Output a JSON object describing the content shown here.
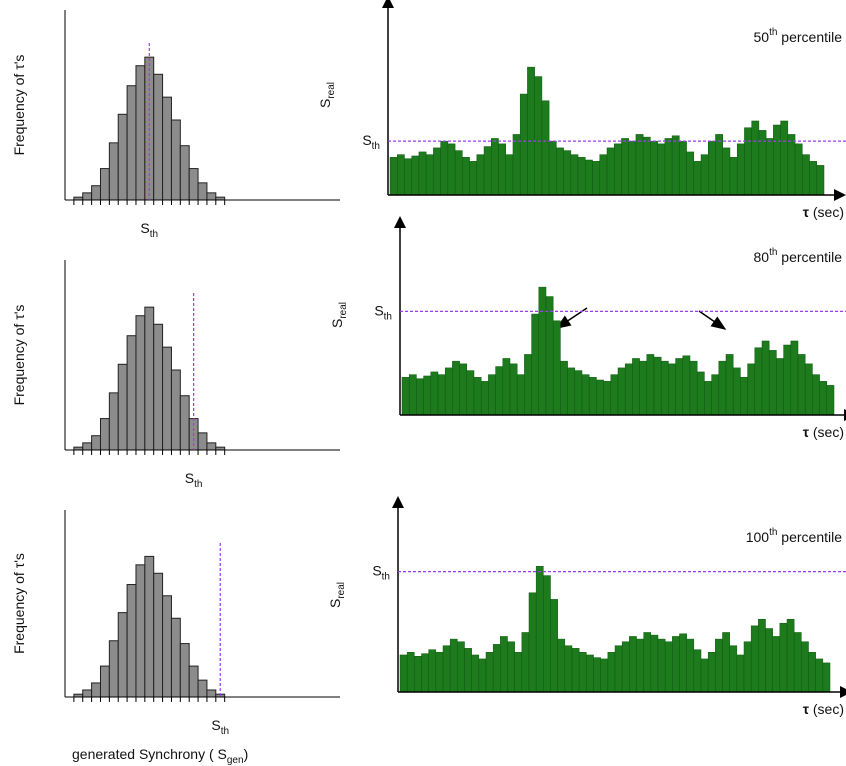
{
  "chart_data": [
    {
      "type": "histogram",
      "y_label": "Frequency of τ's",
      "color": "#8c8c8c",
      "threshold_color": "#9b3cf0",
      "bins": [
        0,
        1,
        2,
        3,
        4,
        5,
        6,
        7,
        8,
        9,
        10,
        11,
        12,
        13,
        14,
        15,
        16,
        17
      ],
      "values": [
        2,
        5,
        10,
        22,
        40,
        60,
        80,
        94,
        100,
        88,
        72,
        56,
        38,
        22,
        12,
        5,
        2
      ],
      "xlim": [
        -1,
        30
      ],
      "ylim": [
        0,
        133
      ],
      "threshold": 8.5,
      "threshold_label": {
        "main": "S",
        "sub": "th"
      }
    },
    {
      "type": "timeseries",
      "title": {
        "num": "50",
        "sup": "th",
        "rest": " percentile"
      },
      "y_label": {
        "main": "S",
        "sub": "real"
      },
      "x_label": {
        "sym": "τ",
        "rest": " (sec)"
      },
      "color": "#1d7a1d",
      "threshold_color": "#9b3cf0",
      "values": [
        28,
        30,
        27,
        29,
        32,
        30,
        35,
        40,
        38,
        33,
        28,
        25,
        30,
        36,
        42,
        38,
        30,
        45,
        75,
        95,
        88,
        70,
        40,
        35,
        33,
        30,
        28,
        26,
        25,
        30,
        35,
        38,
        42,
        40,
        45,
        43,
        40,
        38,
        42,
        44,
        40,
        32,
        25,
        30,
        40,
        45,
        35,
        28,
        38,
        50,
        55,
        48,
        42,
        52,
        55,
        45,
        38,
        30,
        25,
        22
      ],
      "ylim": [
        0,
        130
      ],
      "threshold": 40,
      "threshold_label": {
        "main": "S",
        "sub": "th"
      }
    },
    {
      "type": "histogram",
      "y_label": "Frequency of τ's",
      "color": "#8c8c8c",
      "threshold_color": "#9b3cf0",
      "bins": [
        0,
        1,
        2,
        3,
        4,
        5,
        6,
        7,
        8,
        9,
        10,
        11,
        12,
        13,
        14,
        15,
        16,
        17
      ],
      "values": [
        2,
        5,
        10,
        22,
        40,
        60,
        80,
        94,
        100,
        88,
        72,
        56,
        38,
        22,
        12,
        5,
        2
      ],
      "xlim": [
        -1,
        30
      ],
      "ylim": [
        0,
        133
      ],
      "threshold": 13.5,
      "threshold_label": {
        "main": "S",
        "sub": "th"
      }
    },
    {
      "type": "timeseries",
      "title": {
        "num": "80",
        "sup": "th",
        "rest": " percentile"
      },
      "y_label": {
        "main": "S",
        "sub": "real"
      },
      "x_label": {
        "sym": "τ",
        "rest": " (sec)"
      },
      "color": "#1d7a1d",
      "threshold_color": "#9b3cf0",
      "values": [
        28,
        30,
        27,
        29,
        32,
        30,
        35,
        40,
        38,
        33,
        28,
        25,
        30,
        36,
        42,
        38,
        30,
        45,
        75,
        95,
        88,
        70,
        40,
        35,
        33,
        30,
        28,
        26,
        25,
        30,
        35,
        38,
        42,
        40,
        45,
        43,
        40,
        38,
        42,
        44,
        40,
        32,
        25,
        30,
        40,
        45,
        35,
        28,
        38,
        50,
        55,
        48,
        42,
        52,
        55,
        45,
        38,
        30,
        25,
        22
      ],
      "ylim": [
        0,
        130
      ],
      "threshold": 77,
      "threshold_label": {
        "main": "S",
        "sub": "th"
      }
    },
    {
      "type": "histogram",
      "y_label": "Frequency of τ's",
      "color": "#8c8c8c",
      "threshold_color": "#9b3cf0",
      "bins": [
        0,
        1,
        2,
        3,
        4,
        5,
        6,
        7,
        8,
        9,
        10,
        11,
        12,
        13,
        14,
        15,
        16,
        17
      ],
      "values": [
        2,
        5,
        10,
        22,
        40,
        60,
        80,
        94,
        100,
        88,
        72,
        56,
        38,
        22,
        12,
        5,
        2
      ],
      "xlim": [
        -1,
        30
      ],
      "ylim": [
        0,
        133
      ],
      "threshold": 16.5,
      "threshold_label": {
        "main": "S",
        "sub": "th"
      },
      "x_label": {
        "main": "generated Synchrony ( S",
        "sub": "gen",
        "rest": ")"
      }
    },
    {
      "type": "timeseries",
      "title": {
        "num": "100",
        "sup": "th",
        "rest": " percentile"
      },
      "y_label": {
        "main": "S",
        "sub": "real"
      },
      "x_label": {
        "sym": "τ",
        "rest": " (sec)"
      },
      "color": "#1d7a1d",
      "threshold_color": "#9b3cf0",
      "values": [
        28,
        30,
        27,
        29,
        32,
        30,
        35,
        40,
        38,
        33,
        28,
        25,
        30,
        36,
        42,
        38,
        30,
        45,
        75,
        95,
        88,
        70,
        40,
        35,
        33,
        30,
        28,
        26,
        25,
        30,
        35,
        38,
        42,
        40,
        45,
        43,
        40,
        38,
        42,
        44,
        40,
        32,
        25,
        30,
        40,
        45,
        35,
        28,
        38,
        50,
        55,
        48,
        42,
        52,
        55,
        45,
        38,
        30,
        25,
        22
      ],
      "ylim": [
        0,
        130
      ],
      "threshold": 91,
      "threshold_label": {
        "main": "S",
        "sub": "th"
      }
    }
  ]
}
